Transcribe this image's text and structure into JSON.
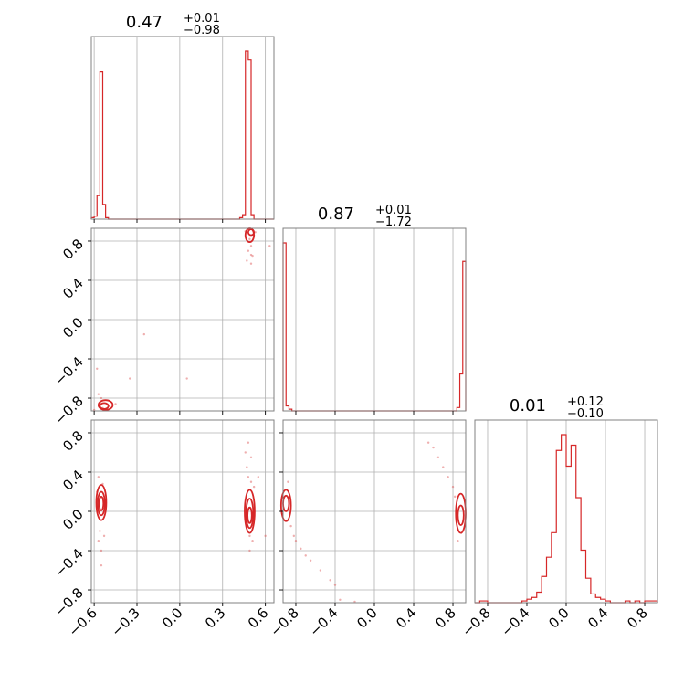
{
  "chart_data": {
    "type": "corner",
    "color": "#d62728",
    "grid": true,
    "parameters": [
      {
        "range": [
          -0.62,
          0.66
        ],
        "ticks": [
          -0.6,
          -0.3,
          0.0,
          0.3,
          0.6
        ],
        "tick_labels": [
          "−0.6",
          "−0.3",
          "0.0",
          "0.3",
          "0.6"
        ],
        "title_value": "0.47",
        "title_plus": "+0.01",
        "title_minus": "−0.98"
      },
      {
        "range": [
          -0.93,
          0.93
        ],
        "ticks": [
          -0.8,
          -0.4,
          0.0,
          0.4,
          0.8
        ],
        "tick_labels": [
          "−0.8",
          "−0.4",
          "0.0",
          "0.4",
          "0.8"
        ],
        "title_value": "0.87",
        "title_plus": "+0.01",
        "title_minus": "−1.72"
      },
      {
        "range": [
          -0.93,
          0.93
        ],
        "ticks": [
          -0.8,
          -0.4,
          0.0,
          0.4,
          0.8
        ],
        "tick_labels": [
          "−0.8",
          "−0.4",
          "0.0",
          "0.4",
          "0.8"
        ],
        "title_value": "0.01",
        "title_plus": "+0.12",
        "title_minus": "−0.10"
      }
    ],
    "histograms": [
      {
        "param": 0,
        "edges": [
          -0.62,
          0.66
        ],
        "bins": [
          [
            -0.62,
            -0.6,
            1
          ],
          [
            -0.6,
            -0.58,
            2
          ],
          [
            -0.58,
            -0.56,
            16
          ],
          [
            -0.56,
            -0.54,
            100
          ],
          [
            -0.54,
            -0.52,
            10
          ],
          [
            -0.52,
            -0.5,
            1
          ],
          [
            -0.5,
            0.42,
            0
          ],
          [
            0.42,
            0.44,
            1
          ],
          [
            0.44,
            0.46,
            3
          ],
          [
            0.46,
            0.48,
            114
          ],
          [
            0.48,
            0.5,
            108
          ],
          [
            0.5,
            0.52,
            3
          ],
          [
            0.52,
            0.66,
            0
          ]
        ]
      },
      {
        "param": 1,
        "edges": [
          -0.93,
          0.93
        ],
        "bins": [
          [
            -0.93,
            -0.9,
            100
          ],
          [
            -0.9,
            -0.87,
            3
          ],
          [
            -0.87,
            -0.84,
            1
          ],
          [
            -0.84,
            0.84,
            0
          ],
          [
            0.84,
            0.87,
            2
          ],
          [
            0.87,
            0.9,
            22
          ],
          [
            0.9,
            0.93,
            89
          ]
        ]
      },
      {
        "param": 2,
        "edges": [
          -0.93,
          0.93
        ],
        "bins": [
          [
            -0.93,
            -0.88,
            0
          ],
          [
            -0.88,
            -0.8,
            1
          ],
          [
            -0.8,
            -0.45,
            0
          ],
          [
            -0.45,
            -0.4,
            1
          ],
          [
            -0.4,
            -0.35,
            2
          ],
          [
            -0.35,
            -0.3,
            3
          ],
          [
            -0.3,
            -0.25,
            6
          ],
          [
            -0.25,
            -0.2,
            15
          ],
          [
            -0.2,
            -0.15,
            26
          ],
          [
            -0.15,
            -0.1,
            40
          ],
          [
            -0.1,
            -0.05,
            87
          ],
          [
            -0.05,
            0.0,
            96
          ],
          [
            0.0,
            0.05,
            78
          ],
          [
            0.05,
            0.1,
            90
          ],
          [
            0.1,
            0.15,
            60
          ],
          [
            0.15,
            0.2,
            30
          ],
          [
            0.2,
            0.25,
            14
          ],
          [
            0.25,
            0.3,
            5
          ],
          [
            0.3,
            0.35,
            3
          ],
          [
            0.35,
            0.4,
            2
          ],
          [
            0.4,
            0.45,
            1
          ],
          [
            0.45,
            0.6,
            0
          ],
          [
            0.6,
            0.65,
            1
          ],
          [
            0.65,
            0.7,
            0
          ],
          [
            0.7,
            0.75,
            1
          ],
          [
            0.75,
            0.8,
            0
          ],
          [
            0.8,
            0.93,
            1
          ]
        ]
      }
    ],
    "pairs": [
      {
        "x_param": 0,
        "y_param": 1,
        "contours": [
          {
            "cx": 0.5,
            "cy": 0.89,
            "rx": 0.02,
            "ry": 0.03
          },
          {
            "cx": 0.49,
            "cy": 0.86,
            "rx": 0.03,
            "ry": 0.07
          },
          {
            "cx": -0.53,
            "cy": -0.88,
            "rx": 0.03,
            "ry": 0.03
          },
          {
            "cx": -0.52,
            "cy": -0.87,
            "rx": 0.05,
            "ry": 0.05
          }
        ],
        "points": [
          [
            0.49,
            0.82
          ],
          [
            0.5,
            0.75
          ],
          [
            0.48,
            0.7
          ],
          [
            0.51,
            0.65
          ],
          [
            0.47,
            0.6
          ],
          [
            0.5,
            0.57
          ],
          [
            0.46,
            0.9
          ],
          [
            0.52,
            0.86
          ],
          [
            0.5,
            0.66
          ],
          [
            0.63,
            0.75
          ],
          [
            0.53,
            0.89
          ],
          [
            -0.56,
            -0.85
          ],
          [
            -0.55,
            -0.8
          ],
          [
            -0.57,
            -0.76
          ],
          [
            -0.54,
            -0.9
          ],
          [
            -0.5,
            -0.88
          ],
          [
            -0.58,
            -0.5
          ],
          [
            -0.35,
            -0.6
          ],
          [
            -0.25,
            -0.15
          ],
          [
            0.05,
            -0.6
          ],
          [
            -0.45,
            -0.86
          ],
          [
            -0.6,
            -0.92
          ]
        ]
      },
      {
        "x_param": 0,
        "y_param": 2,
        "contours": [
          {
            "cx": -0.55,
            "cy": 0.08,
            "rx": 0.015,
            "ry": 0.07
          },
          {
            "cx": -0.55,
            "cy": 0.08,
            "rx": 0.025,
            "ry": 0.12
          },
          {
            "cx": -0.55,
            "cy": 0.09,
            "rx": 0.035,
            "ry": 0.18
          },
          {
            "cx": 0.49,
            "cy": -0.04,
            "rx": 0.015,
            "ry": 0.08
          },
          {
            "cx": 0.49,
            "cy": -0.02,
            "rx": 0.025,
            "ry": 0.15
          },
          {
            "cx": 0.49,
            "cy": 0.0,
            "rx": 0.035,
            "ry": 0.22
          }
        ],
        "points": [
          [
            -0.56,
            -0.2
          ],
          [
            -0.57,
            -0.3
          ],
          [
            -0.55,
            -0.4
          ],
          [
            -0.54,
            0.28
          ],
          [
            -0.58,
            0.2
          ],
          [
            -0.55,
            -0.55
          ],
          [
            -0.57,
            0.35
          ],
          [
            -0.53,
            -0.25
          ],
          [
            0.48,
            0.35
          ],
          [
            0.5,
            0.3
          ],
          [
            0.47,
            0.45
          ],
          [
            0.51,
            -0.3
          ],
          [
            0.49,
            -0.4
          ],
          [
            0.52,
            0.25
          ],
          [
            0.46,
            0.6
          ],
          [
            0.48,
            0.7
          ],
          [
            0.6,
            -0.25
          ],
          [
            0.55,
            0.35
          ],
          [
            0.49,
            -0.25
          ],
          [
            0.5,
            0.55
          ]
        ]
      },
      {
        "x_param": 1,
        "y_param": 2,
        "contours": [
          {
            "cx": -0.9,
            "cy": 0.08,
            "rx": 0.03,
            "ry": 0.08
          },
          {
            "cx": -0.9,
            "cy": 0.06,
            "rx": 0.05,
            "ry": 0.16
          },
          {
            "cx": 0.88,
            "cy": -0.04,
            "rx": 0.03,
            "ry": 0.1
          },
          {
            "cx": 0.88,
            "cy": -0.02,
            "rx": 0.05,
            "ry": 0.2
          }
        ],
        "points": [
          [
            -0.85,
            -0.15
          ],
          [
            -0.82,
            -0.25
          ],
          [
            -0.8,
            -0.3
          ],
          [
            -0.75,
            -0.38
          ],
          [
            -0.7,
            -0.45
          ],
          [
            -0.65,
            -0.5
          ],
          [
            -0.55,
            -0.6
          ],
          [
            -0.45,
            -0.7
          ],
          [
            -0.4,
            -0.75
          ],
          [
            -0.88,
            0.3
          ],
          [
            0.8,
            0.25
          ],
          [
            0.75,
            0.35
          ],
          [
            0.7,
            0.45
          ],
          [
            0.65,
            0.55
          ],
          [
            0.6,
            0.65
          ],
          [
            0.55,
            0.7
          ],
          [
            0.85,
            -0.3
          ],
          [
            0.82,
            0.15
          ],
          [
            -0.35,
            -0.9
          ],
          [
            -0.2,
            -0.92
          ]
        ]
      }
    ]
  }
}
